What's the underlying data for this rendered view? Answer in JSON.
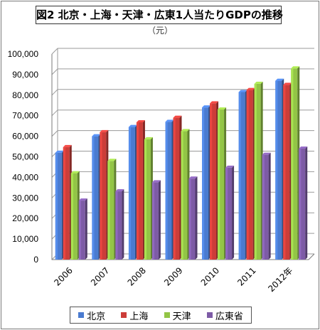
{
  "title": "図2 北京・上海・天津・広東1人当たりGDPの推移",
  "subtitle": "（元）",
  "chart_data": {
    "type": "bar",
    "categories": [
      "2006",
      "2007",
      "2008",
      "2009",
      "2010",
      "2011",
      "2012年"
    ],
    "ylim": [
      0,
      100000
    ],
    "yticks": [
      "0",
      "10,000",
      "20,000",
      "30,000",
      "40,000",
      "50,000",
      "60,000",
      "70,000",
      "80,000",
      "90,000",
      "100,000"
    ],
    "grid": true,
    "legend_position": "bottom",
    "series": [
      {
        "name": "北京",
        "color": "#4a7bd0",
        "values": [
          52000,
          60000,
          64500,
          67000,
          74000,
          81500,
          87000
        ]
      },
      {
        "name": "上海",
        "color": "#cc3d39",
        "values": [
          54700,
          62000,
          66800,
          69000,
          76000,
          82500,
          85000
        ]
      },
      {
        "name": "天津",
        "color": "#93c546",
        "values": [
          42000,
          48000,
          58500,
          62500,
          73000,
          85500,
          93000
        ]
      },
      {
        "name": "広東省",
        "color": "#7d5ba6",
        "values": [
          28700,
          33200,
          37600,
          39400,
          44700,
          51000,
          54000
        ]
      }
    ]
  }
}
